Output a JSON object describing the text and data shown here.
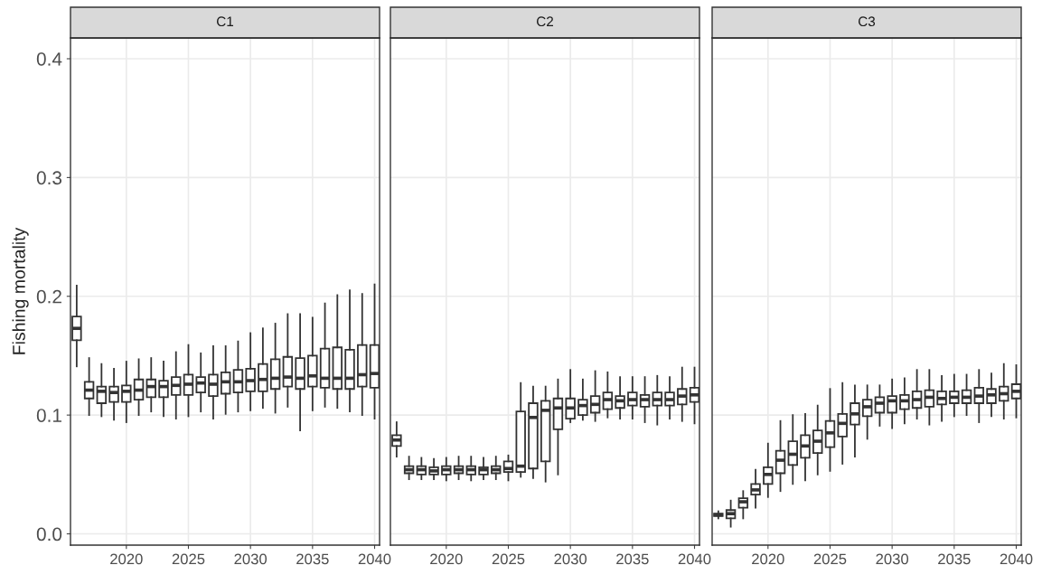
{
  "chart_data": [
    {
      "type": "box",
      "title": "C1",
      "ylabel": "Fishing mortality",
      "grid": true,
      "x": [
        2016,
        2017,
        2018,
        2019,
        2020,
        2021,
        2022,
        2023,
        2024,
        2025,
        2026,
        2027,
        2028,
        2029,
        2030,
        2031,
        2032,
        2033,
        2034,
        2035,
        2036,
        2037,
        2038,
        2039,
        2040
      ],
      "xlim": [
        2015.5,
        2040.4
      ],
      "xticks": [
        2020,
        2025,
        2030,
        2035,
        2040
      ],
      "ylim": [
        -0.0095,
        0.4175
      ],
      "yticks": [
        {
          "value": 0.0,
          "label": "0.0"
        },
        0.1,
        0.2,
        0.3,
        0.4
      ],
      "boxes": [
        {
          "low": 0.141,
          "q1": 0.163,
          "median": 0.173,
          "q3": 0.183,
          "high": 0.209
        },
        {
          "low": 0.1,
          "q1": 0.114,
          "median": 0.121,
          "q3": 0.128,
          "high": 0.148
        },
        {
          "low": 0.099,
          "q1": 0.11,
          "median": 0.12,
          "q3": 0.124,
          "high": 0.143
        },
        {
          "low": 0.096,
          "q1": 0.111,
          "median": 0.119,
          "q3": 0.124,
          "high": 0.139
        },
        {
          "low": 0.094,
          "q1": 0.111,
          "median": 0.12,
          "q3": 0.125,
          "high": 0.145
        },
        {
          "low": 0.1,
          "q1": 0.113,
          "median": 0.121,
          "q3": 0.13,
          "high": 0.147
        },
        {
          "low": 0.103,
          "q1": 0.115,
          "median": 0.124,
          "q3": 0.13,
          "high": 0.148
        },
        {
          "low": 0.099,
          "q1": 0.115,
          "median": 0.124,
          "q3": 0.129,
          "high": 0.145
        },
        {
          "low": 0.097,
          "q1": 0.117,
          "median": 0.125,
          "q3": 0.132,
          "high": 0.153
        },
        {
          "low": 0.099,
          "q1": 0.117,
          "median": 0.126,
          "q3": 0.134,
          "high": 0.159
        },
        {
          "low": 0.103,
          "q1": 0.119,
          "median": 0.127,
          "q3": 0.132,
          "high": 0.152
        },
        {
          "low": 0.097,
          "q1": 0.116,
          "median": 0.126,
          "q3": 0.134,
          "high": 0.158
        },
        {
          "low": 0.101,
          "q1": 0.118,
          "median": 0.128,
          "q3": 0.136,
          "high": 0.158
        },
        {
          "low": 0.103,
          "q1": 0.119,
          "median": 0.128,
          "q3": 0.138,
          "high": 0.162
        },
        {
          "low": 0.104,
          "q1": 0.12,
          "median": 0.129,
          "q3": 0.139,
          "high": 0.169
        },
        {
          "low": 0.106,
          "q1": 0.12,
          "median": 0.13,
          "q3": 0.143,
          "high": 0.173
        },
        {
          "low": 0.102,
          "q1": 0.122,
          "median": 0.131,
          "q3": 0.147,
          "high": 0.177
        },
        {
          "low": 0.107,
          "q1": 0.124,
          "median": 0.132,
          "q3": 0.149,
          "high": 0.185
        },
        {
          "low": 0.087,
          "q1": 0.122,
          "median": 0.131,
          "q3": 0.148,
          "high": 0.185
        },
        {
          "low": 0.104,
          "q1": 0.124,
          "median": 0.133,
          "q3": 0.15,
          "high": 0.182
        },
        {
          "low": 0.107,
          "q1": 0.123,
          "median": 0.131,
          "q3": 0.156,
          "high": 0.194
        },
        {
          "low": 0.106,
          "q1": 0.122,
          "median": 0.131,
          "q3": 0.157,
          "high": 0.201
        },
        {
          "low": 0.103,
          "q1": 0.122,
          "median": 0.131,
          "q3": 0.155,
          "high": 0.205
        },
        {
          "low": 0.1,
          "q1": 0.124,
          "median": 0.134,
          "q3": 0.159,
          "high": 0.202
        },
        {
          "low": 0.097,
          "q1": 0.123,
          "median": 0.135,
          "q3": 0.159,
          "high": 0.21
        }
      ]
    },
    {
      "type": "box",
      "title": "C2",
      "grid": true,
      "tick_labels": "x",
      "x": [
        2016,
        2017,
        2018,
        2019,
        2020,
        2021,
        2022,
        2023,
        2024,
        2025,
        2026,
        2027,
        2028,
        2029,
        2030,
        2031,
        2032,
        2033,
        2034,
        2035,
        2036,
        2037,
        2038,
        2039,
        2040
      ],
      "xlim": [
        2015.5,
        2040.4
      ],
      "xticks": [
        2020,
        2025,
        2030,
        2035,
        2040
      ],
      "ylim": [
        -0.0095,
        0.4175
      ],
      "yticks": [
        0.0,
        0.1,
        0.2,
        0.3,
        0.4
      ],
      "boxes": [
        {
          "low": 0.065,
          "q1": 0.074,
          "median": 0.079,
          "q3": 0.083,
          "high": 0.094
        },
        {
          "low": 0.046,
          "q1": 0.051,
          "median": 0.054,
          "q3": 0.057,
          "high": 0.065
        },
        {
          "low": 0.046,
          "q1": 0.05,
          "median": 0.054,
          "q3": 0.057,
          "high": 0.064
        },
        {
          "low": 0.046,
          "q1": 0.05,
          "median": 0.053,
          "q3": 0.056,
          "high": 0.063
        },
        {
          "low": 0.045,
          "q1": 0.05,
          "median": 0.054,
          "q3": 0.057,
          "high": 0.064
        },
        {
          "low": 0.046,
          "q1": 0.051,
          "median": 0.054,
          "q3": 0.057,
          "high": 0.065
        },
        {
          "low": 0.045,
          "q1": 0.05,
          "median": 0.054,
          "q3": 0.057,
          "high": 0.065
        },
        {
          "low": 0.046,
          "q1": 0.05,
          "median": 0.054,
          "q3": 0.056,
          "high": 0.064
        },
        {
          "low": 0.046,
          "q1": 0.051,
          "median": 0.054,
          "q3": 0.057,
          "high": 0.065
        },
        {
          "low": 0.045,
          "q1": 0.052,
          "median": 0.055,
          "q3": 0.061,
          "high": 0.066
        },
        {
          "low": 0.048,
          "q1": 0.052,
          "median": 0.057,
          "q3": 0.103,
          "high": 0.127
        },
        {
          "low": 0.047,
          "q1": 0.055,
          "median": 0.098,
          "q3": 0.11,
          "high": 0.124
        },
        {
          "low": 0.044,
          "q1": 0.061,
          "median": 0.104,
          "q3": 0.112,
          "high": 0.124
        },
        {
          "low": 0.05,
          "q1": 0.088,
          "median": 0.106,
          "q3": 0.114,
          "high": 0.13
        },
        {
          "low": 0.094,
          "q1": 0.097,
          "median": 0.106,
          "q3": 0.114,
          "high": 0.138
        },
        {
          "low": 0.096,
          "q1": 0.1,
          "median": 0.108,
          "q3": 0.113,
          "high": 0.13
        },
        {
          "low": 0.095,
          "q1": 0.102,
          "median": 0.109,
          "q3": 0.116,
          "high": 0.137
        },
        {
          "low": 0.098,
          "q1": 0.105,
          "median": 0.113,
          "q3": 0.119,
          "high": 0.136
        },
        {
          "low": 0.097,
          "q1": 0.106,
          "median": 0.112,
          "q3": 0.116,
          "high": 0.132
        },
        {
          "low": 0.097,
          "q1": 0.108,
          "median": 0.113,
          "q3": 0.119,
          "high": 0.132
        },
        {
          "low": 0.094,
          "q1": 0.107,
          "median": 0.113,
          "q3": 0.117,
          "high": 0.132
        },
        {
          "low": 0.092,
          "q1": 0.108,
          "median": 0.113,
          "q3": 0.119,
          "high": 0.133
        },
        {
          "low": 0.097,
          "q1": 0.108,
          "median": 0.113,
          "q3": 0.119,
          "high": 0.132
        },
        {
          "low": 0.095,
          "q1": 0.109,
          "median": 0.116,
          "q3": 0.122,
          "high": 0.14
        },
        {
          "low": 0.093,
          "q1": 0.111,
          "median": 0.117,
          "q3": 0.123,
          "high": 0.14
        }
      ]
    },
    {
      "type": "box",
      "title": "C3",
      "grid": true,
      "tick_labels": "x",
      "x": [
        2016,
        2017,
        2018,
        2019,
        2020,
        2021,
        2022,
        2023,
        2024,
        2025,
        2026,
        2027,
        2028,
        2029,
        2030,
        2031,
        2032,
        2033,
        2034,
        2035,
        2036,
        2037,
        2038,
        2039,
        2040
      ],
      "xlim": [
        2015.5,
        2040.4
      ],
      "xticks": [
        2020,
        2025,
        2030,
        2035,
        2040
      ],
      "ylim": [
        -0.0095,
        0.4175
      ],
      "yticks": [
        0.0,
        0.1,
        0.2,
        0.3,
        0.4
      ],
      "boxes": [
        {
          "low": 0.013,
          "q1": 0.015,
          "median": 0.016,
          "q3": 0.017,
          "high": 0.019
        },
        {
          "low": 0.006,
          "q1": 0.013,
          "median": 0.017,
          "q3": 0.02,
          "high": 0.028
        },
        {
          "low": 0.013,
          "q1": 0.022,
          "median": 0.027,
          "q3": 0.03,
          "high": 0.036
        },
        {
          "low": 0.022,
          "q1": 0.033,
          "median": 0.037,
          "q3": 0.042,
          "high": 0.054
        },
        {
          "low": 0.031,
          "q1": 0.042,
          "median": 0.05,
          "q3": 0.056,
          "high": 0.076
        },
        {
          "low": 0.036,
          "q1": 0.051,
          "median": 0.062,
          "q3": 0.07,
          "high": 0.095
        },
        {
          "low": 0.042,
          "q1": 0.058,
          "median": 0.067,
          "q3": 0.078,
          "high": 0.1
        },
        {
          "low": 0.045,
          "q1": 0.064,
          "median": 0.074,
          "q3": 0.083,
          "high": 0.101
        },
        {
          "low": 0.05,
          "q1": 0.068,
          "median": 0.078,
          "q3": 0.087,
          "high": 0.108
        },
        {
          "low": 0.053,
          "q1": 0.073,
          "median": 0.085,
          "q3": 0.095,
          "high": 0.122
        },
        {
          "low": 0.059,
          "q1": 0.082,
          "median": 0.093,
          "q3": 0.101,
          "high": 0.127
        },
        {
          "low": 0.065,
          "q1": 0.092,
          "median": 0.101,
          "q3": 0.11,
          "high": 0.125
        },
        {
          "low": 0.08,
          "q1": 0.099,
          "median": 0.107,
          "q3": 0.113,
          "high": 0.125
        },
        {
          "low": 0.091,
          "q1": 0.102,
          "median": 0.11,
          "q3": 0.115,
          "high": 0.125
        },
        {
          "low": 0.089,
          "q1": 0.102,
          "median": 0.112,
          "q3": 0.116,
          "high": 0.13
        },
        {
          "low": 0.093,
          "q1": 0.105,
          "median": 0.112,
          "q3": 0.117,
          "high": 0.131
        },
        {
          "low": 0.097,
          "q1": 0.106,
          "median": 0.113,
          "q3": 0.12,
          "high": 0.138
        },
        {
          "low": 0.092,
          "q1": 0.107,
          "median": 0.115,
          "q3": 0.121,
          "high": 0.138
        },
        {
          "low": 0.095,
          "q1": 0.109,
          "median": 0.114,
          "q3": 0.12,
          "high": 0.133
        },
        {
          "low": 0.099,
          "q1": 0.11,
          "median": 0.115,
          "q3": 0.12,
          "high": 0.134
        },
        {
          "low": 0.1,
          "q1": 0.11,
          "median": 0.115,
          "q3": 0.121,
          "high": 0.134
        },
        {
          "low": 0.094,
          "q1": 0.11,
          "median": 0.116,
          "q3": 0.123,
          "high": 0.138
        },
        {
          "low": 0.099,
          "q1": 0.11,
          "median": 0.117,
          "q3": 0.122,
          "high": 0.135
        },
        {
          "low": 0.097,
          "q1": 0.112,
          "median": 0.118,
          "q3": 0.124,
          "high": 0.143
        },
        {
          "low": 0.098,
          "q1": 0.114,
          "median": 0.12,
          "q3": 0.126,
          "high": 0.142
        }
      ]
    }
  ]
}
